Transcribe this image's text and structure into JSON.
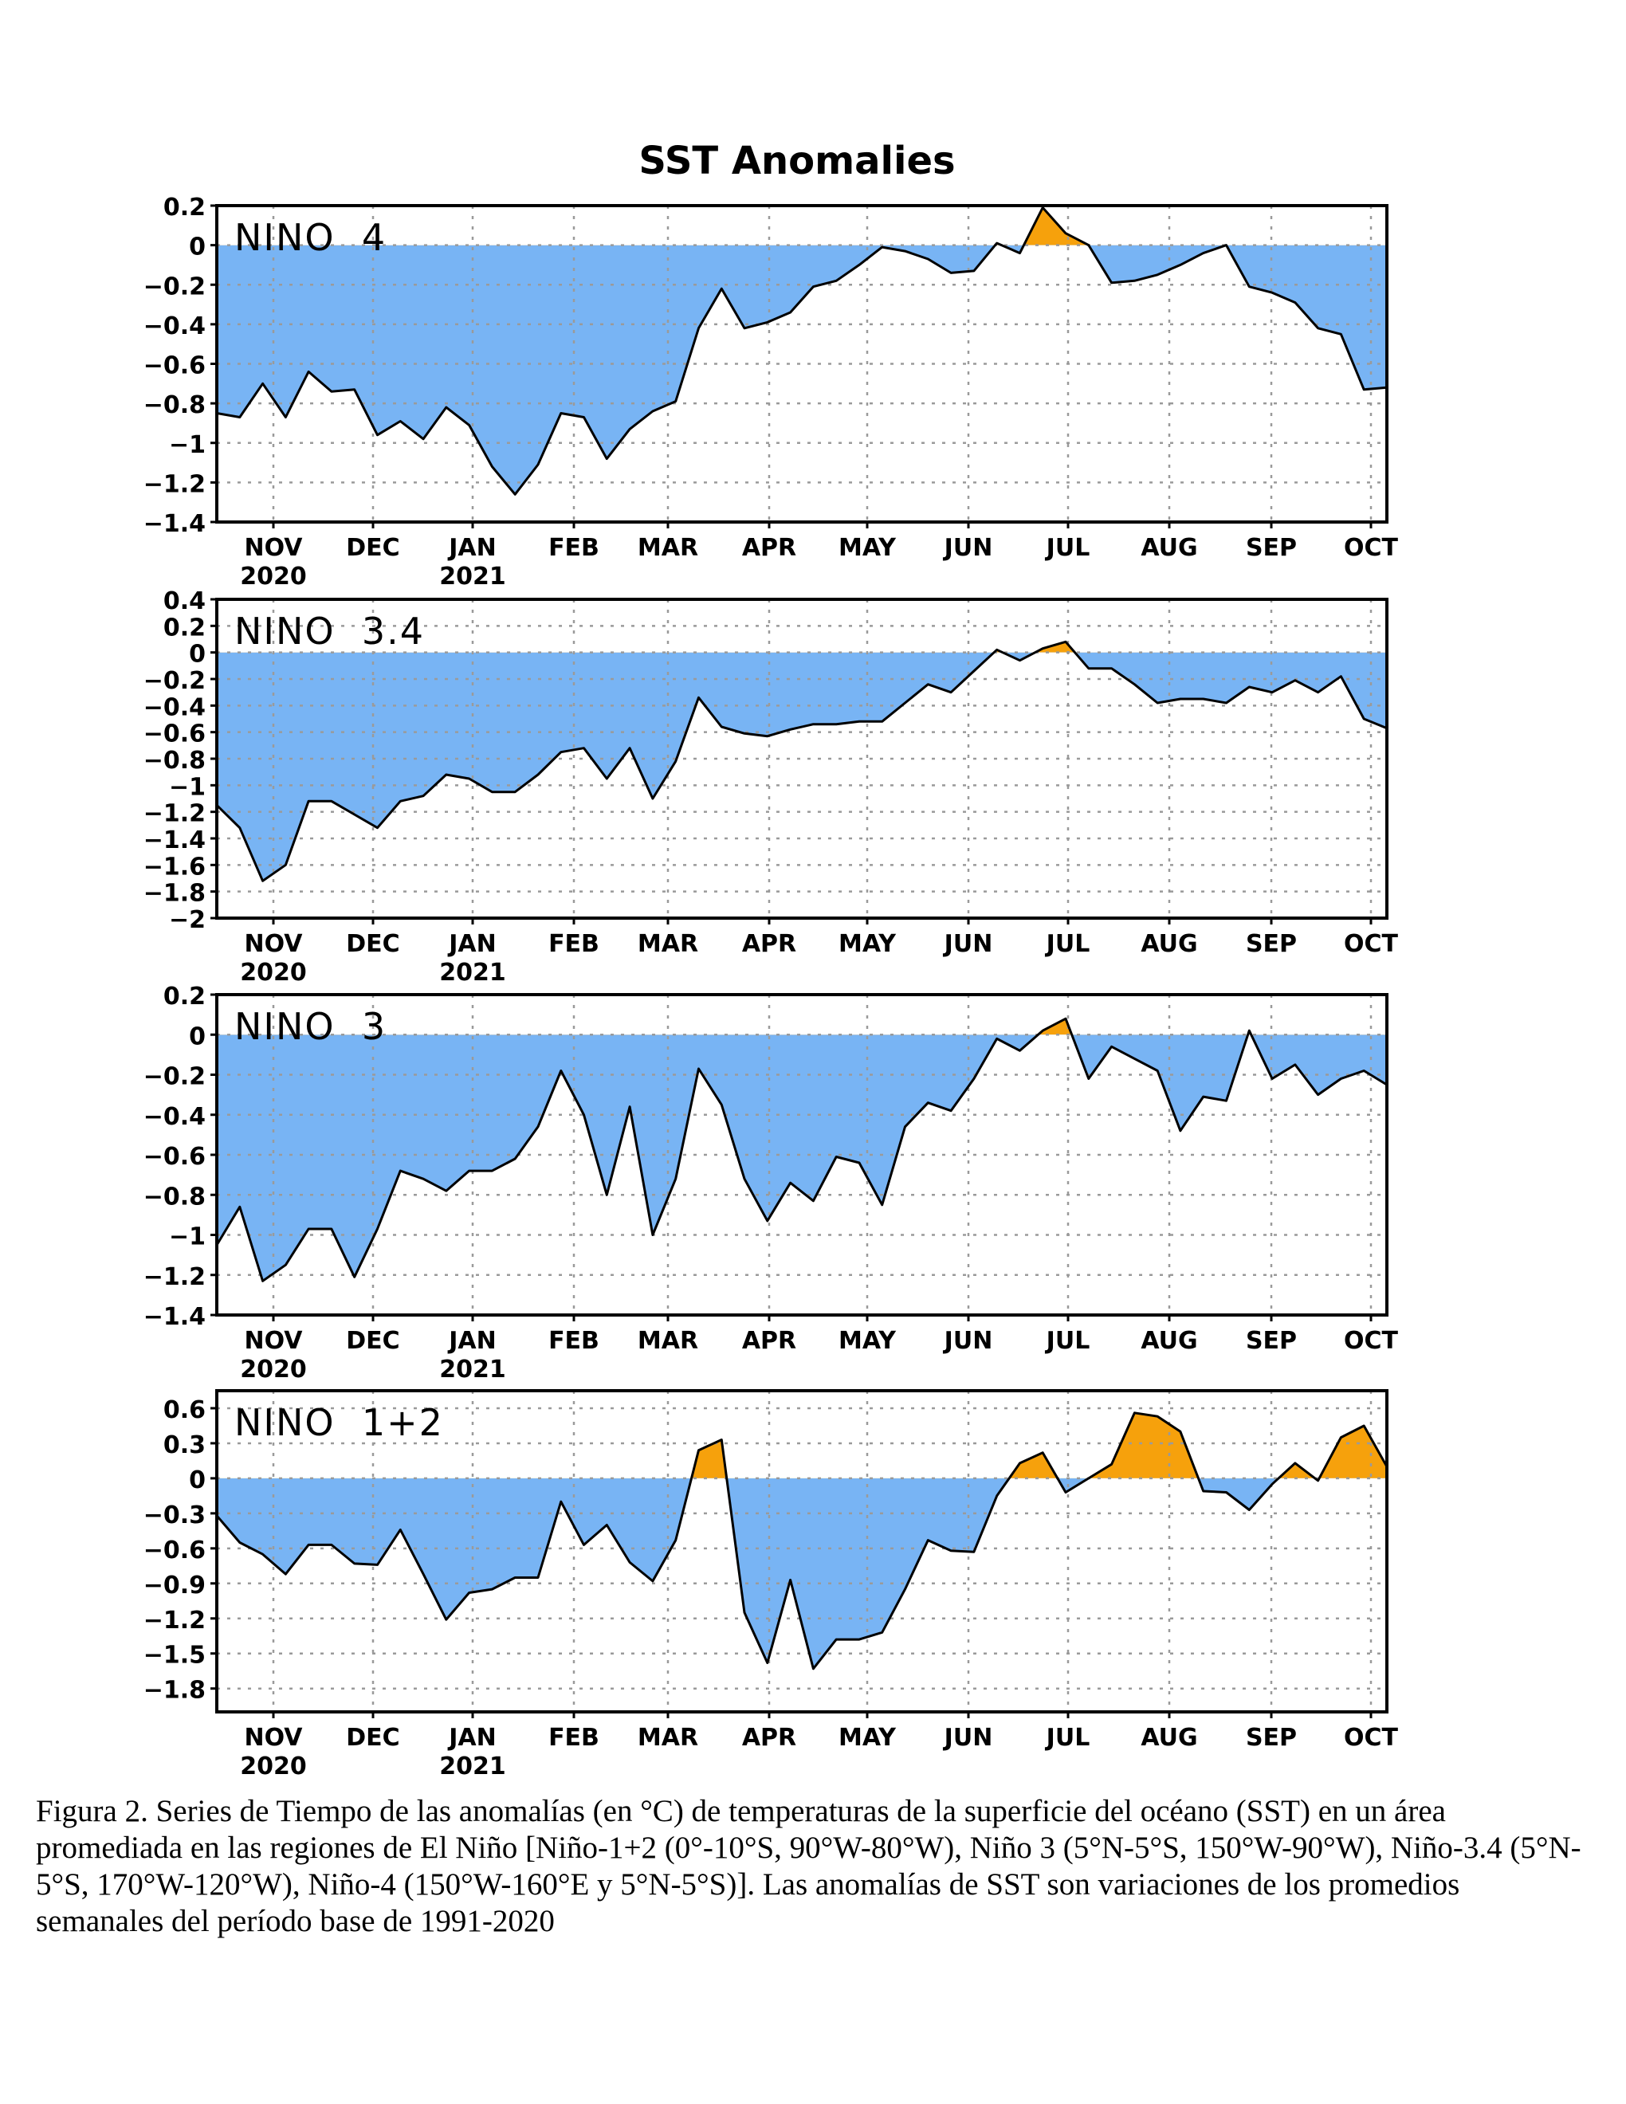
{
  "figure": {
    "title": "SST Anomalies",
    "colors": {
      "negative": "#78b4f4",
      "positive": "#f6a10c",
      "line": "#000000",
      "grid": "#9a9a9a"
    }
  },
  "chart_data": [
    {
      "type": "area",
      "label": "NINO 4",
      "ylim": [
        -1.4,
        0.2
      ],
      "yticks": [
        0.2,
        0,
        -0.2,
        -0.4,
        -0.6,
        -0.8,
        -1,
        -1.2,
        -1.4
      ],
      "ytick_labels": [
        "0.2",
        "0",
        "−0.2",
        "−0.4",
        "−0.6",
        "−0.8",
        "−1",
        "−1.2",
        "−1.4"
      ],
      "xticks": [
        "NOV",
        "DEC",
        "JAN",
        "FEB",
        "MAR",
        "APR",
        "MAY",
        "JUN",
        "JUL",
        "AUG",
        "SEP",
        "OCT"
      ],
      "year_labels": [
        {
          "month": "NOV",
          "year": "2020"
        },
        {
          "month": "JAN",
          "year": "2021"
        }
      ],
      "values": [
        -0.85,
        -0.87,
        -0.7,
        -0.87,
        -0.64,
        -0.74,
        -0.73,
        -0.96,
        -0.89,
        -0.98,
        -0.82,
        -0.91,
        -1.12,
        -1.26,
        -1.11,
        -0.85,
        -0.87,
        -1.08,
        -0.93,
        -0.84,
        -0.79,
        -0.42,
        -0.22,
        -0.42,
        -0.39,
        -0.34,
        -0.21,
        -0.18,
        -0.1,
        -0.01,
        -0.03,
        -0.07,
        -0.14,
        -0.13,
        0.01,
        -0.04,
        0.19,
        0.06,
        0.0,
        -0.19,
        -0.18,
        -0.15,
        -0.1,
        -0.04,
        0.0,
        -0.21,
        -0.24,
        -0.29,
        -0.42,
        -0.45,
        -0.73,
        -0.72
      ]
    },
    {
      "type": "area",
      "label": "NINO 3.4",
      "ylim": [
        -2,
        0.4
      ],
      "yticks": [
        0.4,
        0.2,
        0,
        -0.2,
        -0.4,
        -0.6,
        -0.8,
        -1,
        -1.2,
        -1.4,
        -1.6,
        -1.8,
        -2
      ],
      "ytick_labels": [
        "0.4",
        "0.2",
        "0",
        "−0.2",
        "−0.4",
        "−0.6",
        "−0.8",
        "−1",
        "−1.2",
        "−1.4",
        "−1.6",
        "−1.8",
        "−2"
      ],
      "xticks": [
        "NOV",
        "DEC",
        "JAN",
        "FEB",
        "MAR",
        "APR",
        "MAY",
        "JUN",
        "JUL",
        "AUG",
        "SEP",
        "OCT"
      ],
      "year_labels": [
        {
          "month": "NOV",
          "year": "2020"
        },
        {
          "month": "JAN",
          "year": "2021"
        }
      ],
      "values": [
        -1.15,
        -1.32,
        -1.72,
        -1.6,
        -1.12,
        -1.12,
        -1.22,
        -1.32,
        -1.12,
        -1.08,
        -0.92,
        -0.95,
        -1.05,
        -1.05,
        -0.92,
        -0.75,
        -0.72,
        -0.95,
        -0.72,
        -1.1,
        -0.82,
        -0.34,
        -0.56,
        -0.61,
        -0.63,
        -0.58,
        -0.54,
        -0.54,
        -0.52,
        -0.52,
        -0.38,
        -0.24,
        -0.3,
        -0.14,
        0.02,
        -0.06,
        0.03,
        0.08,
        -0.12,
        -0.12,
        -0.24,
        -0.38,
        -0.35,
        -0.35,
        -0.38,
        -0.26,
        -0.3,
        -0.21,
        -0.3,
        -0.18,
        -0.5,
        -0.57
      ]
    },
    {
      "type": "area",
      "label": "NINO 3",
      "ylim": [
        -1.4,
        0.2
      ],
      "yticks": [
        0.2,
        0,
        -0.2,
        -0.4,
        -0.6,
        -0.8,
        -1,
        -1.2,
        -1.4
      ],
      "ytick_labels": [
        "0.2",
        "0",
        "−0.2",
        "−0.4",
        "−0.6",
        "−0.8",
        "−1",
        "−1.2",
        "−1.4"
      ],
      "xticks": [
        "NOV",
        "DEC",
        "JAN",
        "FEB",
        "MAR",
        "APR",
        "MAY",
        "JUN",
        "JUL",
        "AUG",
        "SEP",
        "OCT"
      ],
      "year_labels": [
        {
          "month": "NOV",
          "year": "2020"
        },
        {
          "month": "JAN",
          "year": "2021"
        }
      ],
      "values": [
        -1.05,
        -0.86,
        -1.23,
        -1.15,
        -0.97,
        -0.97,
        -1.21,
        -0.97,
        -0.68,
        -0.72,
        -0.78,
        -0.68,
        -0.68,
        -0.62,
        -0.46,
        -0.18,
        -0.4,
        -0.8,
        -0.36,
        -1.0,
        -0.72,
        -0.17,
        -0.35,
        -0.72,
        -0.93,
        -0.74,
        -0.83,
        -0.61,
        -0.64,
        -0.85,
        -0.46,
        -0.34,
        -0.38,
        -0.22,
        -0.02,
        -0.08,
        0.02,
        0.08,
        -0.22,
        -0.06,
        -0.12,
        -0.18,
        -0.48,
        -0.31,
        -0.33,
        0.02,
        -0.22,
        -0.15,
        -0.3,
        -0.22,
        -0.18,
        -0.25
      ]
    },
    {
      "type": "area",
      "label": "NINO 1+2",
      "ylim": [
        -2.0,
        0.75
      ],
      "yticks": [
        0.6,
        0.3,
        0,
        -0.3,
        -0.6,
        -0.9,
        -1.2,
        -1.5,
        -1.8
      ],
      "ytick_labels": [
        "0.6",
        "0.3",
        "0",
        "−0.3",
        "−0.6",
        "−0.9",
        "−1.2",
        "−1.5",
        "−1.8"
      ],
      "xticks": [
        "NOV",
        "DEC",
        "JAN",
        "FEB",
        "MAR",
        "APR",
        "MAY",
        "JUN",
        "JUL",
        "AUG",
        "SEP",
        "OCT"
      ],
      "year_labels": [
        {
          "month": "NOV",
          "year": "2020"
        },
        {
          "month": "JAN",
          "year": "2021"
        }
      ],
      "values": [
        -0.32,
        -0.55,
        -0.65,
        -0.82,
        -0.57,
        -0.57,
        -0.73,
        -0.74,
        -0.44,
        -0.82,
        -1.21,
        -0.98,
        -0.95,
        -0.85,
        -0.85,
        -0.2,
        -0.57,
        -0.4,
        -0.72,
        -0.88,
        -0.53,
        0.24,
        0.33,
        -1.15,
        -1.58,
        -0.87,
        -1.63,
        -1.38,
        -1.38,
        -1.32,
        -0.95,
        -0.53,
        -0.62,
        -0.63,
        -0.15,
        0.13,
        0.22,
        -0.12,
        0.0,
        0.12,
        0.56,
        0.53,
        0.4,
        -0.11,
        -0.12,
        -0.27,
        -0.05,
        0.13,
        -0.02,
        0.35,
        0.45,
        0.1
      ]
    }
  ],
  "caption": "Figura 2. Series de Tiempo de las anomalías (en °C) de temperaturas de la superficie del océano (SST) en un área promediada en las regiones de El Niño [Niño-1+2 (0°-10°S, 90°W-80°W), Niño 3 (5°N-5°S, 150°W-90°W), Niño-3.4 (5°N-5°S, 170°W-120°W), Niño-4 (150°W-160°E y 5°N-5°S)]. Las anomalías de SST son variaciones de los promedios semanales del período base de 1991-2020"
}
